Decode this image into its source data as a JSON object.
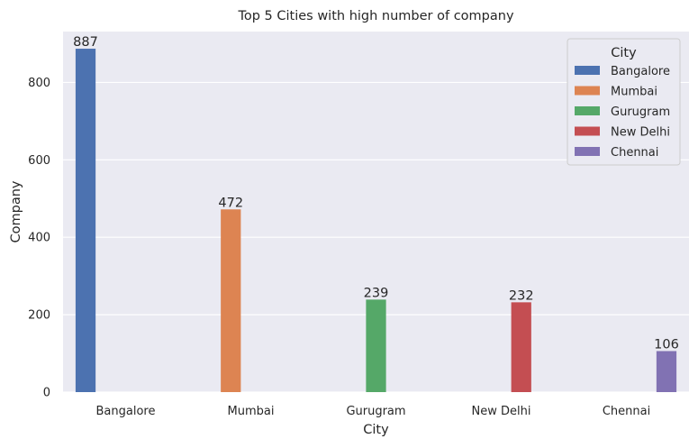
{
  "chart_data": {
    "type": "bar",
    "title": "Top 5 Cities with high number of company",
    "xlabel": "City",
    "ylabel": "Company",
    "categories": [
      "Bangalore",
      "Mumbai",
      "Gurugram",
      "New Delhi",
      "Chennai"
    ],
    "values": [
      887,
      472,
      239,
      232,
      106
    ],
    "data_labels": [
      "887",
      "472",
      "239",
      "232",
      "106"
    ],
    "colors": [
      "#4c72b0",
      "#dd8452",
      "#55a868",
      "#c44e52",
      "#8172b3"
    ],
    "ylim": [
      0,
      931.35
    ],
    "yticks": [
      0,
      200,
      400,
      600,
      800
    ],
    "ytick_labels": [
      "0",
      "200",
      "400",
      "600",
      "800"
    ],
    "grid": true,
    "background_color": "#eaeaf2",
    "legend": {
      "title": "City",
      "placement": "top-right",
      "entries": [
        "Bangalore",
        "Mumbai",
        "Gurugram",
        "New Delhi",
        "Chennai"
      ]
    }
  }
}
